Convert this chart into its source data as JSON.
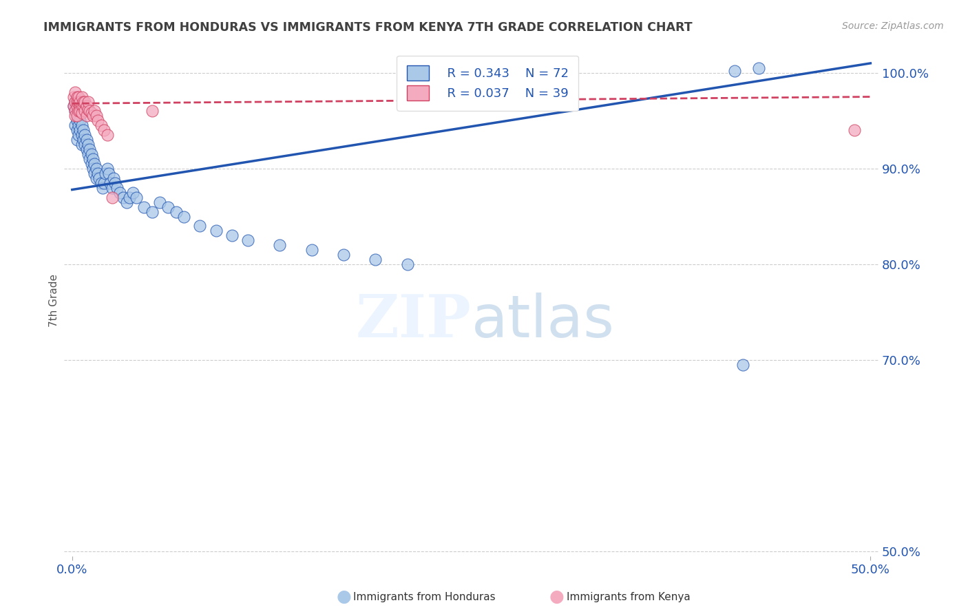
{
  "title": "IMMIGRANTS FROM HONDURAS VS IMMIGRANTS FROM KENYA 7TH GRADE CORRELATION CHART",
  "source": "Source: ZipAtlas.com",
  "ylabel": "7th Grade",
  "legend_R_honduras": "R = 0.343",
  "legend_N_honduras": "N = 72",
  "legend_R_kenya": "R = 0.037",
  "legend_N_kenya": "N = 39",
  "color_honduras": "#aac8e8",
  "color_kenya": "#f4aabf",
  "line_color_honduras": "#2255b0",
  "line_color_kenya": "#d04060",
  "title_color": "#404040",
  "axis_label_color": "#2255b0",
  "xlim": [
    0.0,
    0.5
  ],
  "ylim": [
    0.495,
    1.03
  ],
  "yticks": [
    1.0,
    0.9,
    0.8,
    0.7,
    0.5
  ],
  "ytick_labels": [
    "100.0%",
    "90.0%",
    "80.0%",
    "70.0%",
    "50.0%"
  ],
  "xticks": [
    0.0,
    0.5
  ],
  "xtick_labels": [
    "0.0%",
    "50.0%"
  ],
  "hon_line_x": [
    0.0,
    0.5
  ],
  "hon_line_y": [
    0.878,
    1.01
  ],
  "ken_line_x": [
    0.0,
    0.5
  ],
  "ken_line_y": [
    0.968,
    0.975
  ],
  "honduras_x": [
    0.001,
    0.002,
    0.002,
    0.002,
    0.003,
    0.003,
    0.003,
    0.003,
    0.004,
    0.004,
    0.004,
    0.005,
    0.005,
    0.005,
    0.006,
    0.006,
    0.006,
    0.007,
    0.007,
    0.008,
    0.008,
    0.009,
    0.009,
    0.01,
    0.01,
    0.011,
    0.011,
    0.012,
    0.012,
    0.013,
    0.013,
    0.014,
    0.014,
    0.015,
    0.015,
    0.016,
    0.017,
    0.018,
    0.019,
    0.02,
    0.021,
    0.022,
    0.023,
    0.024,
    0.025,
    0.026,
    0.027,
    0.028,
    0.03,
    0.032,
    0.034,
    0.036,
    0.038,
    0.04,
    0.045,
    0.05,
    0.055,
    0.06,
    0.065,
    0.07,
    0.08,
    0.09,
    0.1,
    0.11,
    0.13,
    0.15,
    0.17,
    0.19,
    0.21,
    0.42,
    0.415,
    0.43
  ],
  "honduras_y": [
    0.965,
    0.96,
    0.97,
    0.945,
    0.96,
    0.95,
    0.94,
    0.93,
    0.955,
    0.935,
    0.945,
    0.95,
    0.94,
    0.96,
    0.935,
    0.945,
    0.925,
    0.94,
    0.93,
    0.935,
    0.925,
    0.93,
    0.92,
    0.925,
    0.915,
    0.91,
    0.92,
    0.905,
    0.915,
    0.91,
    0.9,
    0.905,
    0.895,
    0.9,
    0.89,
    0.895,
    0.89,
    0.885,
    0.88,
    0.885,
    0.895,
    0.9,
    0.895,
    0.885,
    0.88,
    0.89,
    0.885,
    0.88,
    0.875,
    0.87,
    0.865,
    0.87,
    0.875,
    0.87,
    0.86,
    0.855,
    0.865,
    0.86,
    0.855,
    0.85,
    0.84,
    0.835,
    0.83,
    0.825,
    0.82,
    0.815,
    0.81,
    0.805,
    0.8,
    0.695,
    1.002,
    1.005
  ],
  "kenya_x": [
    0.001,
    0.001,
    0.002,
    0.002,
    0.002,
    0.002,
    0.003,
    0.003,
    0.003,
    0.003,
    0.004,
    0.004,
    0.004,
    0.005,
    0.005,
    0.005,
    0.006,
    0.006,
    0.006,
    0.007,
    0.007,
    0.008,
    0.008,
    0.009,
    0.009,
    0.01,
    0.01,
    0.011,
    0.012,
    0.013,
    0.014,
    0.015,
    0.016,
    0.018,
    0.02,
    0.022,
    0.025,
    0.05,
    0.49
  ],
  "kenya_y": [
    0.975,
    0.965,
    0.97,
    0.96,
    0.98,
    0.955,
    0.975,
    0.965,
    0.955,
    0.97,
    0.97,
    0.96,
    0.975,
    0.965,
    0.97,
    0.96,
    0.965,
    0.975,
    0.958,
    0.965,
    0.97,
    0.96,
    0.97,
    0.965,
    0.955,
    0.962,
    0.97,
    0.96,
    0.958,
    0.955,
    0.96,
    0.955,
    0.95,
    0.945,
    0.94,
    0.935,
    0.87,
    0.96,
    0.94
  ]
}
